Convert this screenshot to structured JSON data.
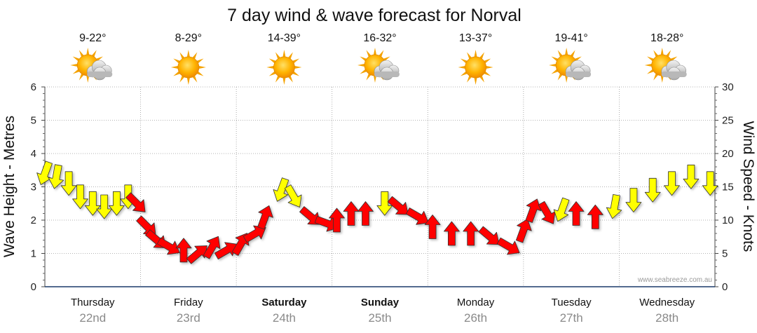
{
  "chart_data": {
    "type": "line",
    "title": "7 day wind & wave forecast for Norval",
    "ylabel_left": "Wave Height - Metres",
    "ylabel_right": "Wind Speed - Knots",
    "ylim_left": [
      0,
      6
    ],
    "ylim_right": [
      0,
      30
    ],
    "yticks_left": [
      "0",
      "1",
      "2",
      "3",
      "4",
      "5",
      "6"
    ],
    "yticks_right": [
      "0",
      "5",
      "10",
      "15",
      "20",
      "25",
      "30"
    ],
    "grid": true,
    "credit": "www.seabreeze.com.au",
    "days": [
      {
        "day": "Thursday",
        "date": "22nd",
        "bold": false,
        "temp": "9-22°",
        "weather": "partly-cloudy-icon"
      },
      {
        "day": "Friday",
        "date": "23rd",
        "bold": false,
        "temp": "8-29°",
        "weather": "sunny-icon"
      },
      {
        "day": "Saturday",
        "date": "24th",
        "bold": true,
        "temp": "14-39°",
        "weather": "sunny-icon"
      },
      {
        "day": "Sunday",
        "date": "25th",
        "bold": true,
        "temp": "16-32°",
        "weather": "partly-cloudy-icon"
      },
      {
        "day": "Monday",
        "date": "26th",
        "bold": false,
        "temp": "13-37°",
        "weather": "sunny-icon"
      },
      {
        "day": "Tuesday",
        "date": "27th",
        "bold": false,
        "temp": "19-41°",
        "weather": "partly-cloudy-icon"
      },
      {
        "day": "Wednesday",
        "date": "28th",
        "bold": false,
        "temp": "18-28°",
        "weather": "partly-cloudy-icon"
      }
    ],
    "series": [
      {
        "name": "Wind Speed (knots)",
        "axis": "right",
        "unit": "days from Thursday 00:00",
        "colors": {
          "offshore": "#ff0000",
          "onshore": "#ffff00",
          "outline": "#333333"
        },
        "points": [
          {
            "t": 0.0,
            "speed": 17.0,
            "dir": 200,
            "type": "onshore"
          },
          {
            "t": 0.12,
            "speed": 16.5,
            "dir": 190,
            "type": "onshore"
          },
          {
            "t": 0.25,
            "speed": 15.5,
            "dir": 180,
            "type": "onshore"
          },
          {
            "t": 0.37,
            "speed": 13.5,
            "dir": 180,
            "type": "onshore"
          },
          {
            "t": 0.5,
            "speed": 12.5,
            "dir": 180,
            "type": "onshore"
          },
          {
            "t": 0.62,
            "speed": 12.0,
            "dir": 180,
            "type": "onshore"
          },
          {
            "t": 0.75,
            "speed": 12.5,
            "dir": 180,
            "type": "onshore"
          },
          {
            "t": 0.87,
            "speed": 13.5,
            "dir": 180,
            "type": "onshore"
          },
          {
            "t": 0.96,
            "speed": 12.5,
            "dir": 135,
            "type": "offshore"
          },
          {
            "t": 1.07,
            "speed": 9.0,
            "dir": 135,
            "type": "offshore"
          },
          {
            "t": 1.17,
            "speed": 7.0,
            "dir": 130,
            "type": "offshore"
          },
          {
            "t": 1.3,
            "speed": 6.0,
            "dir": 120,
            "type": "offshore"
          },
          {
            "t": 1.45,
            "speed": 5.5,
            "dir": 0,
            "type": "offshore"
          },
          {
            "t": 1.6,
            "speed": 5.0,
            "dir": 50,
            "type": "offshore"
          },
          {
            "t": 1.75,
            "speed": 6.0,
            "dir": 30,
            "type": "offshore"
          },
          {
            "t": 1.9,
            "speed": 5.5,
            "dir": 60,
            "type": "offshore"
          },
          {
            "t": 2.05,
            "speed": 6.5,
            "dir": 30,
            "type": "offshore"
          },
          {
            "t": 2.2,
            "speed": 8.0,
            "dir": 60,
            "type": "offshore"
          },
          {
            "t": 2.3,
            "speed": 10.5,
            "dir": 20,
            "type": "offshore"
          },
          {
            "t": 2.47,
            "speed": 14.5,
            "dir": 200,
            "type": "onshore"
          },
          {
            "t": 2.6,
            "speed": 13.5,
            "dir": 150,
            "type": "onshore"
          },
          {
            "t": 2.78,
            "speed": 10.5,
            "dir": 130,
            "type": "offshore"
          },
          {
            "t": 2.95,
            "speed": 9.5,
            "dir": 110,
            "type": "offshore"
          },
          {
            "t": 3.05,
            "speed": 10.0,
            "dir": 0,
            "type": "offshore"
          },
          {
            "t": 3.2,
            "speed": 11.0,
            "dir": 0,
            "type": "offshore"
          },
          {
            "t": 3.35,
            "speed": 11.0,
            "dir": 0,
            "type": "offshore"
          },
          {
            "t": 3.55,
            "speed": 12.5,
            "dir": 180,
            "type": "onshore"
          },
          {
            "t": 3.7,
            "speed": 12.0,
            "dir": 130,
            "type": "offshore"
          },
          {
            "t": 3.9,
            "speed": 10.5,
            "dir": 120,
            "type": "offshore"
          },
          {
            "t": 4.05,
            "speed": 9.0,
            "dir": 0,
            "type": "offshore"
          },
          {
            "t": 4.25,
            "speed": 8.0,
            "dir": 0,
            "type": "offshore"
          },
          {
            "t": 4.45,
            "speed": 8.0,
            "dir": 0,
            "type": "offshore"
          },
          {
            "t": 4.65,
            "speed": 7.5,
            "dir": 130,
            "type": "offshore"
          },
          {
            "t": 4.85,
            "speed": 6.0,
            "dir": 120,
            "type": "offshore"
          },
          {
            "t": 5.0,
            "speed": 8.5,
            "dir": 20,
            "type": "offshore"
          },
          {
            "t": 5.1,
            "speed": 11.5,
            "dir": 20,
            "type": "offshore"
          },
          {
            "t": 5.25,
            "speed": 11.0,
            "dir": 150,
            "type": "offshore"
          },
          {
            "t": 5.4,
            "speed": 11.5,
            "dir": 200,
            "type": "onshore"
          },
          {
            "t": 5.55,
            "speed": 11.0,
            "dir": 0,
            "type": "offshore"
          },
          {
            "t": 5.75,
            "speed": 10.5,
            "dir": 0,
            "type": "offshore"
          },
          {
            "t": 5.95,
            "speed": 12.0,
            "dir": 190,
            "type": "onshore"
          },
          {
            "t": 6.15,
            "speed": 13.0,
            "dir": 180,
            "type": "onshore"
          },
          {
            "t": 6.35,
            "speed": 14.5,
            "dir": 180,
            "type": "onshore"
          },
          {
            "t": 6.55,
            "speed": 15.5,
            "dir": 180,
            "type": "onshore"
          },
          {
            "t": 6.75,
            "speed": 16.5,
            "dir": 180,
            "type": "onshore"
          },
          {
            "t": 6.95,
            "speed": 15.5,
            "dir": 180,
            "type": "onshore"
          }
        ]
      }
    ]
  }
}
